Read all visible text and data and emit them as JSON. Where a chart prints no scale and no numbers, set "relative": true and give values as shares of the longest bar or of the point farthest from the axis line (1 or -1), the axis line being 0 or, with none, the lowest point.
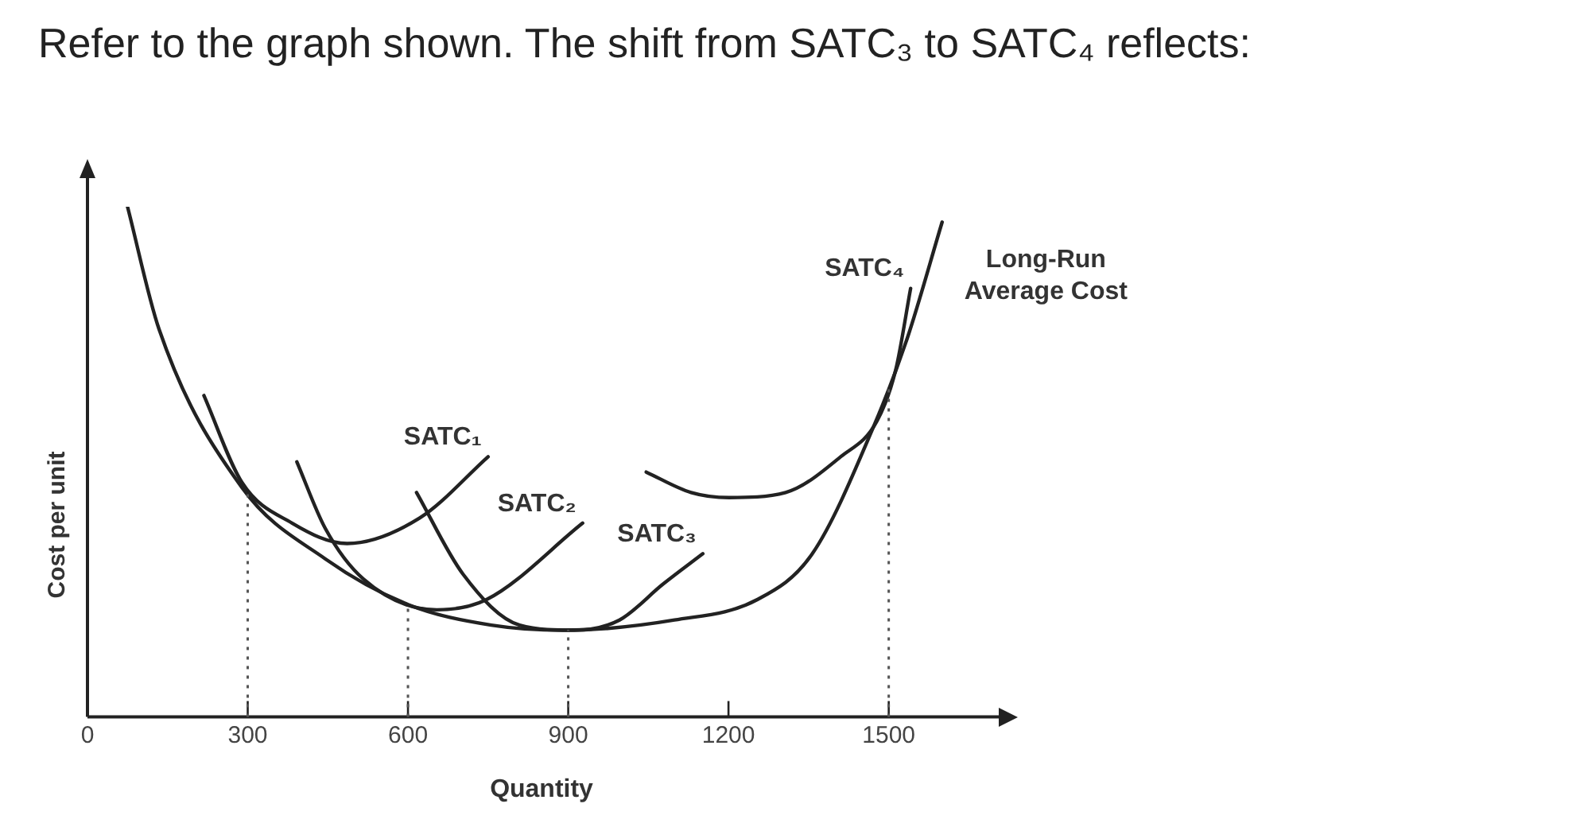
{
  "chart_data": {
    "type": "line",
    "title": "Refer to the graph shown. The shift from SATC₃ to SATC₄ reflects:",
    "xlabel": "Quantity",
    "ylabel": "Cost per unit",
    "relative": true,
    "xlim": [
      0,
      1700
    ],
    "xticks": [
      0,
      300,
      600,
      900,
      1200,
      1500
    ],
    "tick_labels": "x",
    "grid": false,
    "legend": false,
    "marker": "none",
    "line_style": "solid",
    "ref_lines": [
      {
        "axis": "x",
        "value": 300,
        "line_style": "dotted",
        "color": "#555555"
      },
      {
        "axis": "x",
        "value": 600,
        "line_style": "dotted",
        "color": "#555555"
      },
      {
        "axis": "x",
        "value": 900,
        "line_style": "dotted",
        "color": "#555555"
      },
      {
        "axis": "x",
        "value": 1500,
        "line_style": "dotted",
        "color": "#555555"
      }
    ],
    "series": [
      {
        "name": "Long-Run Average Cost",
        "color": "#222222",
        "x": [
          75,
          134,
          289,
          445,
          601,
          756,
          890,
          1099,
          1254,
          1357,
          1472,
          1534,
          1600
        ],
        "values": [
          1.0,
          0.76,
          0.45,
          0.31,
          0.22,
          0.18,
          0.17,
          0.19,
          0.23,
          0.32,
          0.57,
          0.74,
          0.97
        ]
      },
      {
        "name": "SATC₁",
        "color": "#222222",
        "x": [
          218,
          289,
          383,
          486,
          622,
          750
        ],
        "values": [
          0.63,
          0.46,
          0.38,
          0.34,
          0.39,
          0.51
        ]
      },
      {
        "name": "SATC₂",
        "color": "#222222",
        "x": [
          392,
          445,
          517,
          654,
          747,
          927
        ],
        "values": [
          0.5,
          0.37,
          0.27,
          0.21,
          0.23,
          0.38
        ]
      },
      {
        "name": "SATC₃",
        "color": "#222222",
        "x": [
          616,
          703,
          809,
          912,
          996,
          1077,
          1152
        ],
        "values": [
          0.44,
          0.28,
          0.18,
          0.17,
          0.19,
          0.26,
          0.32
        ]
      },
      {
        "name": "SATC₄",
        "color": "#222222",
        "x": [
          1046,
          1130,
          1201,
          1307,
          1410,
          1478,
          1513,
          1541
        ],
        "values": [
          0.48,
          0.44,
          0.43,
          0.44,
          0.51,
          0.58,
          0.68,
          0.84
        ]
      }
    ]
  }
}
